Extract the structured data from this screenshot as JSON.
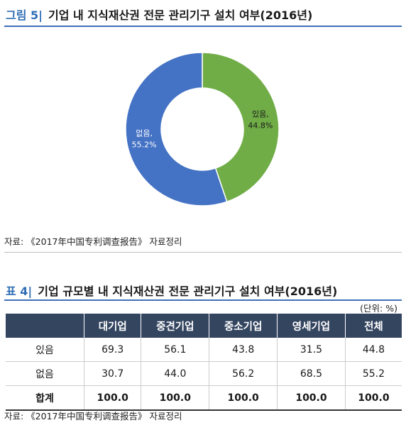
{
  "figure": {
    "prefix": "그림 5|",
    "title": "기업 내 지식재산권 전문 관리기구 설치 여부(2016년)"
  },
  "chart_data": {
    "type": "pie",
    "subtype": "donut",
    "categories": [
      "있음",
      "없음"
    ],
    "values": [
      44.8,
      55.2
    ],
    "colors": [
      "#70ad47",
      "#4472c4"
    ],
    "labels": [
      "있음,",
      "없음,"
    ],
    "value_labels": [
      "44.8%",
      "55.2%"
    ]
  },
  "source1": "자료: 《2017年中国专利调查报告》 자료정리",
  "table": {
    "prefix": "표 4|",
    "title": "기업 규모별 내 지식재산권 전문 관리기구 설치 여부(2016년)",
    "unit": "(단위: %)",
    "headers": [
      "",
      "대기업",
      "중견기업",
      "중소기업",
      "영세기업",
      "전체"
    ],
    "rows": [
      {
        "label": "있음",
        "cells": [
          "69.3",
          "56.1",
          "43.8",
          "31.5",
          "44.8"
        ]
      },
      {
        "label": "없음",
        "cells": [
          "30.7",
          "44.0",
          "56.2",
          "68.5",
          "55.2"
        ]
      },
      {
        "label": "합계",
        "cells": [
          "100.0",
          "100.0",
          "100.0",
          "100.0",
          "100.0"
        ]
      }
    ]
  },
  "source2": "자료: 《2017年中国专利调查报告》 자료정리"
}
